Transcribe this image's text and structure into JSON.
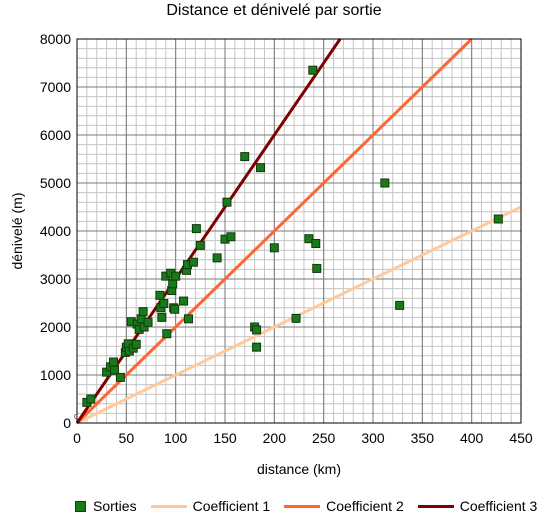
{
  "chart_data": {
    "type": "scatter",
    "title": "Distance et dénivelé par sortie",
    "xlabel": "distance (km)",
    "ylabel": "dénivelé (m)",
    "xlim": [
      0,
      450
    ],
    "ylim": [
      0,
      8000
    ],
    "x_ticks": [
      0,
      50,
      100,
      150,
      200,
      250,
      300,
      350,
      400,
      450
    ],
    "y_ticks": [
      0,
      1000,
      2000,
      3000,
      4000,
      5000,
      6000,
      7000,
      8000
    ],
    "x_tick_labels": [
      "0",
      "50",
      "100",
      "150",
      "200",
      "250",
      "300",
      "350",
      "400",
      "450"
    ],
    "y_tick_labels": [
      "0",
      "1000",
      "2000",
      "3000",
      "4000",
      "5000",
      "6000",
      "7000",
      "8000"
    ],
    "grid": true,
    "minor_grid": true,
    "legend_position": "bottom",
    "scatter_series": {
      "name": "Sorties",
      "color": "#1a7a1a",
      "points": [
        [
          10,
          430
        ],
        [
          14,
          500
        ],
        [
          30,
          1060
        ],
        [
          34,
          1170
        ],
        [
          37,
          1270
        ],
        [
          38,
          1100
        ],
        [
          44,
          950
        ],
        [
          49,
          1470
        ],
        [
          50,
          1580
        ],
        [
          52,
          1650
        ],
        [
          53,
          1500
        ],
        [
          55,
          2110
        ],
        [
          57,
          1560
        ],
        [
          60,
          1640
        ],
        [
          61,
          2060
        ],
        [
          63,
          1950
        ],
        [
          65,
          2170
        ],
        [
          67,
          2320
        ],
        [
          68,
          2000
        ],
        [
          72,
          2100
        ],
        [
          84,
          2660
        ],
        [
          85,
          2400
        ],
        [
          86,
          2200
        ],
        [
          88,
          2490
        ],
        [
          90,
          3060
        ],
        [
          91,
          1860
        ],
        [
          95,
          3120
        ],
        [
          96,
          2760
        ],
        [
          97,
          2900
        ],
        [
          98,
          2400
        ],
        [
          99,
          2370
        ],
        [
          100,
          3060
        ],
        [
          108,
          2540
        ],
        [
          111,
          3180
        ],
        [
          112,
          3300
        ],
        [
          113,
          2170
        ],
        [
          118,
          3350
        ],
        [
          121,
          4050
        ],
        [
          125,
          3700
        ],
        [
          142,
          3440
        ],
        [
          150,
          3830
        ],
        [
          152,
          4600
        ],
        [
          156,
          3880
        ],
        [
          170,
          5550
        ],
        [
          180,
          2000
        ],
        [
          182,
          1940
        ],
        [
          182,
          1580
        ],
        [
          186,
          5320
        ],
        [
          200,
          3650
        ],
        [
          222,
          2180
        ],
        [
          235,
          3840
        ],
        [
          239,
          7350
        ],
        [
          242,
          3740
        ],
        [
          243,
          3220
        ],
        [
          312,
          5000
        ],
        [
          327,
          2450
        ],
        [
          427,
          4250
        ]
      ]
    },
    "line_series": [
      {
        "name": "Coefficient 1",
        "color": "#ffc999",
        "slope": 10,
        "width": 3
      },
      {
        "name": "Coefficient 2",
        "color": "#ff6633",
        "slope": 20,
        "width": 3
      },
      {
        "name": "Coefficient 3",
        "color": "#800000",
        "slope": 30,
        "width": 3
      }
    ],
    "annotation": "0"
  }
}
